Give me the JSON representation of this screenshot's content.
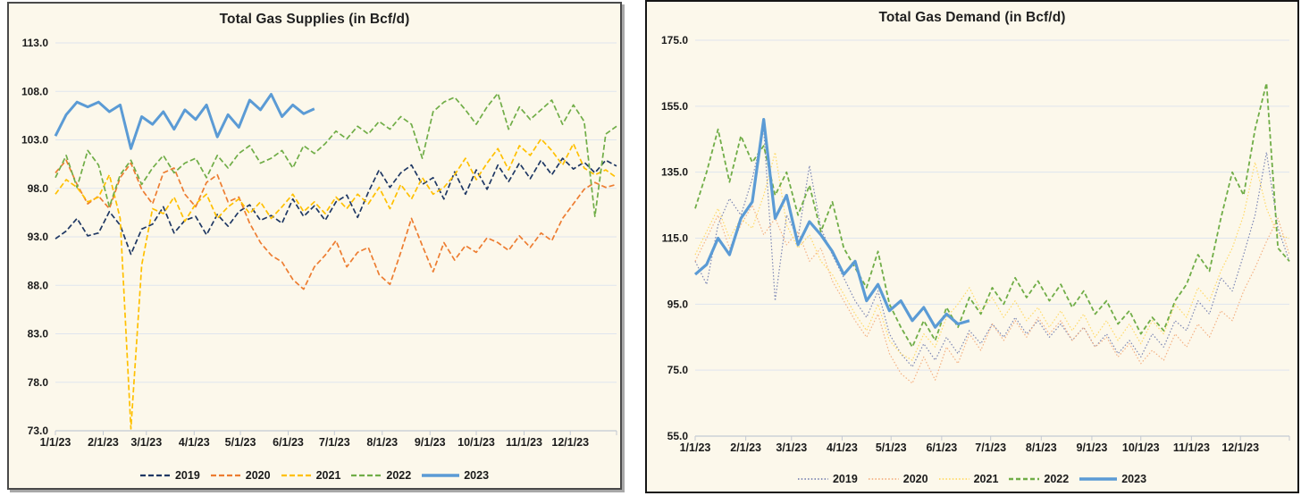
{
  "chart_data": [
    {
      "type": "line",
      "title": "Total Gas Supplies (in Bcf/d)",
      "ylim": [
        73,
        113
      ],
      "ytick_step": 5,
      "grid": "horizontal",
      "legend_position": "bottom",
      "y_axis": {
        "min": 73,
        "max": 113,
        "step": 5,
        "tick_labels": [
          "113.0",
          "108.0",
          "103.0",
          "98.0",
          "93.0",
          "88.0",
          "83.0",
          "78.0",
          "73.0"
        ]
      },
      "x_axis": {
        "tick_labels": [
          "1/1/23",
          "2/1/23",
          "3/1/23",
          "4/1/23",
          "5/1/23",
          "6/1/23",
          "7/1/23",
          "8/1/23",
          "9/1/23",
          "10/1/23",
          "11/1/23",
          "12/1/23"
        ],
        "tick_days": [
          1,
          32,
          60,
          91,
          121,
          152,
          182,
          213,
          244,
          274,
          305,
          335
        ],
        "sampling": "weekly (values at day 1, 8, 15, ... of the overlaid year)"
      },
      "legend_entries": [
        "2019",
        "2020",
        "2021",
        "2022",
        "2023"
      ],
      "series": [
        {
          "name": "2019",
          "color": "#1F3864",
          "dash": "6 3",
          "width": 1.7,
          "values": [
            92.8,
            93.6,
            94.9,
            93.1,
            93.4,
            95.6,
            94.2,
            91.2,
            93.8,
            94.3,
            96.1,
            93.4,
            94.7,
            95.1,
            93.2,
            95.3,
            94.1,
            95.6,
            96.3,
            94.7,
            95.2,
            94.4,
            96.9,
            95.1,
            96.2,
            94.7,
            96.6,
            97.3,
            95.0,
            97.6,
            99.9,
            98.1,
            99.6,
            100.4,
            98.4,
            99.1,
            96.9,
            99.7,
            97.4,
            99.9,
            97.9,
            100.4,
            98.7,
            100.6,
            99.0,
            100.9,
            99.4,
            101.1,
            100.0,
            100.7,
            99.6,
            100.9,
            100.3
          ]
        },
        {
          "name": "2020",
          "color": "#ED7D31",
          "dash": "6 3",
          "width": 1.7,
          "values": [
            99.6,
            100.9,
            98.4,
            96.4,
            97.2,
            95.9,
            99.1,
            100.6,
            97.9,
            96.4,
            99.6,
            100.1,
            97.4,
            96.1,
            98.6,
            99.4,
            96.6,
            97.1,
            94.4,
            92.4,
            91.1,
            90.4,
            88.6,
            87.6,
            89.9,
            91.1,
            92.6,
            89.9,
            91.4,
            91.9,
            89.1,
            88.1,
            91.4,
            94.9,
            92.1,
            89.4,
            92.4,
            90.6,
            92.1,
            91.4,
            92.9,
            92.4,
            91.6,
            93.1,
            91.9,
            93.4,
            92.6,
            94.9,
            96.4,
            97.9,
            98.6,
            98.1,
            98.4
          ]
        },
        {
          "name": "2021",
          "color": "#FFC000",
          "dash": "6 3",
          "width": 1.7,
          "values": [
            97.4,
            98.9,
            98.1,
            96.6,
            97.1,
            99.4,
            94.9,
            73.2,
            90.1,
            95.9,
            95.4,
            97.1,
            94.6,
            96.4,
            97.4,
            94.9,
            96.1,
            96.9,
            95.4,
            96.6,
            94.9,
            96.1,
            97.4,
            95.6,
            96.6,
            95.4,
            97.1,
            95.9,
            97.4,
            96.4,
            98.1,
            95.9,
            98.4,
            96.9,
            99.1,
            97.4,
            98.1,
            99.4,
            101.1,
            98.9,
            100.6,
            102.1,
            99.9,
            102.4,
            101.4,
            103.1,
            101.9,
            100.4,
            102.6,
            100.1,
            99.4,
            99.9,
            99.1
          ]
        },
        {
          "name": "2022",
          "color": "#70AD47",
          "dash": "6 3",
          "width": 1.7,
          "values": [
            99.1,
            101.4,
            98.1,
            101.9,
            100.4,
            96.1,
            99.4,
            100.9,
            98.4,
            100.1,
            101.4,
            99.6,
            100.6,
            101.1,
            99.1,
            101.4,
            100.1,
            101.6,
            102.4,
            100.6,
            101.1,
            101.9,
            100.1,
            102.4,
            101.6,
            102.6,
            103.9,
            103.1,
            104.4,
            103.6,
            104.9,
            104.1,
            105.4,
            104.6,
            101.1,
            105.9,
            106.9,
            107.4,
            106.1,
            104.6,
            106.4,
            107.8,
            104.1,
            106.4,
            105.1,
            106.1,
            107.1,
            104.6,
            106.6,
            104.9,
            95.1,
            103.6,
            104.4
          ]
        },
        {
          "name": "2023",
          "color": "#5B9BD5",
          "dash": "",
          "width": 3,
          "values": [
            103.4,
            105.6,
            106.9,
            106.4,
            106.9,
            105.9,
            106.6,
            102.1,
            105.4,
            104.6,
            105.9,
            104.1,
            106.1,
            105.1,
            106.6,
            103.3,
            105.6,
            104.3,
            107.1,
            106.1,
            107.7,
            105.4,
            106.6,
            105.7,
            106.2
          ]
        }
      ]
    },
    {
      "type": "line",
      "title": "Total Gas Demand (in Bcf/d)",
      "ylim": [
        55,
        175
      ],
      "ytick_step": 20,
      "grid": "horizontal",
      "legend_position": "bottom",
      "y_axis": {
        "min": 55,
        "max": 175,
        "step": 20,
        "tick_labels": [
          "175.0",
          "155.0",
          "135.0",
          "115.0",
          "95.0",
          "75.0",
          "55.0"
        ]
      },
      "x_axis": {
        "tick_labels": [
          "1/1/23",
          "2/1/23",
          "3/1/23",
          "4/1/23",
          "5/1/23",
          "6/1/23",
          "7/1/23",
          "8/1/23",
          "9/1/23",
          "10/1/23",
          "11/1/23",
          "12/1/23"
        ],
        "tick_days": [
          1,
          32,
          60,
          91,
          121,
          152,
          182,
          213,
          244,
          274,
          305,
          335
        ],
        "sampling": "weekly (values at day 1, 8, 15, ... of the overlaid year)"
      },
      "legend_entries": [
        "2019",
        "2020",
        "2021",
        "2022",
        "2023"
      ],
      "series": [
        {
          "name": "2019",
          "color": "#7C86B4",
          "dash": "1.5 2.2",
          "width": 1.2,
          "values": [
            108,
            101,
            119,
            127,
            122,
            133,
            148,
            96,
            122,
            115,
            137,
            118,
            110,
            103,
            96,
            91,
            99,
            86,
            80,
            76,
            83,
            78,
            85,
            80,
            87,
            83,
            89,
            85,
            91,
            86,
            90,
            85,
            89,
            84,
            88,
            82,
            86,
            80,
            84,
            79,
            86,
            82,
            90,
            87,
            96,
            92,
            103,
            99,
            110,
            122,
            141,
            118,
            108
          ]
        },
        {
          "name": "2020",
          "color": "#F4B183",
          "dash": "1.5 2.2",
          "width": 1.2,
          "values": [
            108,
            115,
            122,
            112,
            119,
            125,
            116,
            121,
            113,
            117,
            108,
            112,
            102,
            96,
            90,
            85,
            92,
            80,
            74,
            71,
            79,
            72,
            82,
            77,
            86,
            81,
            89,
            84,
            90,
            85,
            91,
            86,
            90,
            84,
            88,
            82,
            85,
            79,
            83,
            77,
            81,
            78,
            86,
            82,
            89,
            85,
            93,
            90,
            99,
            106,
            114,
            121,
            110
          ]
        },
        {
          "name": "2021",
          "color": "#FFD966",
          "dash": "1.5 2.2",
          "width": 1.2,
          "values": [
            110,
            117,
            124,
            115,
            121,
            118,
            128,
            141,
            119,
            112,
            116,
            108,
            104,
            98,
            92,
            87,
            95,
            84,
            80,
            78,
            86,
            82,
            91,
            95,
            100,
            93,
            97,
            91,
            96,
            90,
            94,
            88,
            93,
            87,
            92,
            85,
            90,
            84,
            89,
            83,
            90,
            86,
            95,
            91,
            100,
            96,
            105,
            112,
            122,
            138,
            124,
            116,
            115
          ]
        },
        {
          "name": "2022",
          "color": "#70AD47",
          "dash": "5 3",
          "width": 1.8,
          "values": [
            124,
            135,
            148,
            132,
            146,
            138,
            143,
            128,
            135,
            122,
            131,
            117,
            126,
            112,
            106,
            100,
            111,
            95,
            88,
            82,
            90,
            84,
            94,
            88,
            97,
            92,
            100,
            95,
            103,
            97,
            102,
            96,
            101,
            94,
            99,
            92,
            96,
            89,
            93,
            86,
            91,
            87,
            96,
            101,
            110,
            105,
            121,
            135,
            128,
            148,
            162,
            112,
            108
          ]
        },
        {
          "name": "2023",
          "color": "#5B9BD5",
          "dash": "",
          "width": 3.2,
          "values": [
            104,
            107,
            115,
            110,
            121,
            126,
            151,
            121,
            128,
            113,
            120,
            116,
            111,
            104,
            108,
            96,
            101,
            93,
            96,
            90,
            94,
            88,
            92,
            89,
            90
          ]
        }
      ]
    }
  ],
  "style": {
    "panel_background": "#FCF8EB",
    "gridline_color": "#dfe5ee",
    "axis_line_color": "#c3c9d2",
    "text_color": "#1a1a1a"
  }
}
